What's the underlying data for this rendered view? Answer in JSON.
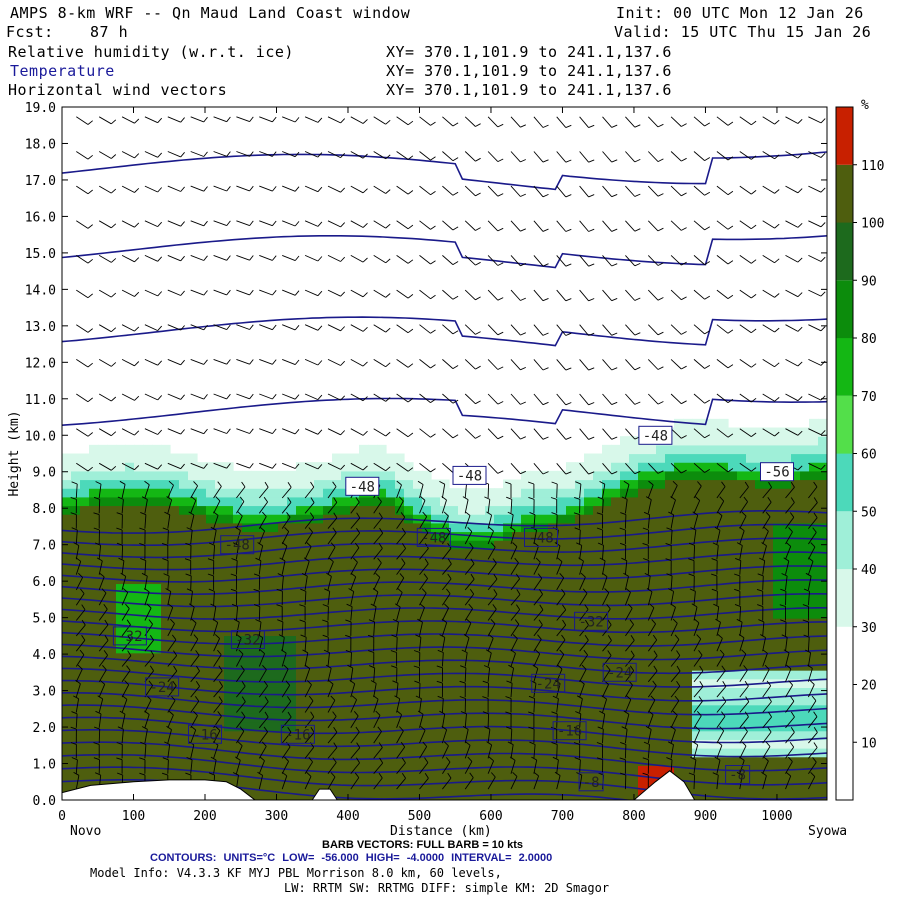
{
  "header": {
    "title": "AMPS 8-km WRF -- Qn Maud Land Coast window",
    "init": "Init: 00 UTC Mon 12 Jan 26",
    "fcst_label": "Fcst:",
    "fcst_value": "87 h",
    "valid": "Valid: 15 UTC Thu 15 Jan 26",
    "fields": [
      {
        "name": "Relative humidity (w.r.t. ice)",
        "xy": "XY= 370.1,101.9 to 241.1,137.6"
      },
      {
        "name": "Temperature",
        "xy": "XY= 370.1,101.9 to 241.1,137.6"
      },
      {
        "name": "Horizontal wind vectors",
        "xy": "XY= 370.1,101.9 to 241.1,137.6"
      }
    ]
  },
  "colors": {
    "temperature_contour": "#1a1a8a",
    "barb": "#000000",
    "terrain": "#ffffff",
    "rh_bins": [
      "#ffffff",
      "#ffffff",
      "#ffffff",
      "#d8f8ea",
      "#9fefd8",
      "#4cd9ba",
      "#53df4a",
      "#14b714",
      "#0c8c0c",
      "#1d6a1d",
      "#4e5e0e",
      "#c82000"
    ]
  },
  "chart_data": {
    "type": "cross-section",
    "xlabel": "Distance (km)",
    "ylabel": "Height (km)",
    "xlim": [
      0,
      1070
    ],
    "ylim": [
      0,
      19
    ],
    "x_ticks": [
      0,
      100,
      200,
      300,
      400,
      500,
      600,
      700,
      800,
      900,
      1000
    ],
    "y_ticks": [
      "0.0",
      "1.0",
      "2.0",
      "3.0",
      "4.0",
      "5.0",
      "6.0",
      "7.0",
      "8.0",
      "9.0",
      "10.0",
      "11.0",
      "12.0",
      "13.0",
      "14.0",
      "15.0",
      "16.0",
      "17.0",
      "18.0",
      "19.0"
    ],
    "endpoints": {
      "left": "Novo",
      "right": "Syowa"
    },
    "colorbar": {
      "unit": "%",
      "levels": [
        0,
        10,
        20,
        30,
        40,
        50,
        60,
        70,
        80,
        90,
        100,
        110,
        120
      ],
      "tick_labels": [
        "10",
        "20",
        "30",
        "40",
        "50",
        "60",
        "70",
        "80",
        "90",
        "100",
        "110"
      ]
    },
    "terrain": [
      [
        0,
        0.2
      ],
      [
        40,
        0.4
      ],
      [
        100,
        0.5
      ],
      [
        150,
        0.55
      ],
      [
        200,
        0.55
      ],
      [
        230,
        0.5
      ],
      [
        250,
        0.3
      ],
      [
        270,
        0
      ],
      [
        350,
        0
      ],
      [
        360,
        0.3
      ],
      [
        375,
        0.3
      ],
      [
        385,
        0
      ],
      [
        800,
        0
      ],
      [
        830,
        0.5
      ],
      [
        850,
        0.8
      ],
      [
        870,
        0.5
      ],
      [
        885,
        0
      ]
    ],
    "temperature_contours": {
      "units": "°C",
      "low": -56.0,
      "high": -4.0,
      "interval": 2.0,
      "labels": [
        {
          "text": "-48",
          "x": 420,
          "z": 8.6
        },
        {
          "text": "-48",
          "x": 570,
          "z": 8.9
        },
        {
          "text": "-48",
          "x": 830,
          "z": 10.0
        },
        {
          "text": "-56",
          "x": 1000,
          "z": 9.0
        },
        {
          "text": "-48",
          "x": 245,
          "z": 7.0
        },
        {
          "text": "-48",
          "x": 520,
          "z": 7.2
        },
        {
          "text": "-48",
          "x": 670,
          "z": 7.2
        },
        {
          "text": "-32",
          "x": 95,
          "z": 4.5
        },
        {
          "text": "-32",
          "x": 260,
          "z": 4.4
        },
        {
          "text": "-32",
          "x": 740,
          "z": 4.9
        },
        {
          "text": "-24",
          "x": 140,
          "z": 3.1
        },
        {
          "text": "-24",
          "x": 680,
          "z": 3.2
        },
        {
          "text": "-24",
          "x": 780,
          "z": 3.5
        },
        {
          "text": "-16",
          "x": 200,
          "z": 1.8
        },
        {
          "text": "-16",
          "x": 330,
          "z": 1.8
        },
        {
          "text": "-16",
          "x": 710,
          "z": 1.9
        },
        {
          "text": "-8",
          "x": 740,
          "z": 0.5
        },
        {
          "text": "-8",
          "x": 945,
          "z": 0.7
        }
      ]
    },
    "barb_note": "BARB VECTORS: FULL BARB = 10 kts"
  },
  "footer": {
    "barb": "BARB VECTORS: FULL BARB = 10 kts",
    "contours": "CONTOURS: UNITS=°C LOW= -56.000 HIGH= -4.0000 INTERVAL= 2.0000",
    "model_line1": "Model Info: V4.3.3 KF MYJ PBL Morrison 8.0 km, 60 levels,",
    "model_line2": "LW: RRTM SW: RRTMG DIFF: simple KM: 2D Smagor"
  }
}
